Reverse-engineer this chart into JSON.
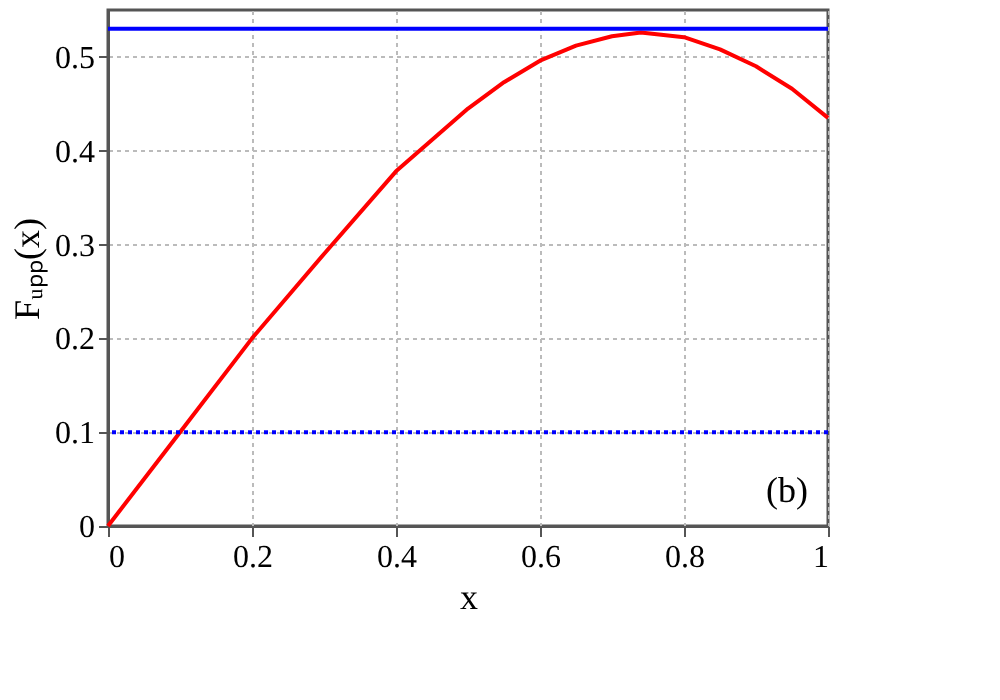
{
  "chart_data": {
    "type": "line",
    "xlabel": "x",
    "ylabel": "Fᵤₚₚ(x)",
    "x": [
      0,
      0.1,
      0.2,
      0.3,
      0.4,
      0.5,
      0.55,
      0.6,
      0.65,
      0.7,
      0.74,
      0.8,
      0.85,
      0.9,
      0.95,
      1.0
    ],
    "series": [
      {
        "color": "#ff0000",
        "values": [
          0,
          0.1,
          0.2,
          0.29,
          0.378,
          0.445,
          0.473,
          0.496,
          0.512,
          0.522,
          0.526,
          0.521,
          0.508,
          0.49,
          0.466,
          0.435
        ]
      }
    ],
    "ref_lines": [
      {
        "axis": "y",
        "value": 0.53,
        "color": "#0000ff",
        "line_style": "solid"
      },
      {
        "axis": "y",
        "value": 0.1,
        "color": "#0000ff",
        "line_style": "dotted"
      }
    ],
    "annotations": [
      "(b)"
    ],
    "xlim": [
      0,
      1
    ],
    "xticks": [
      0,
      0.2,
      0.4,
      0.6,
      0.8,
      1
    ],
    "ylim": [
      0,
      0.55
    ],
    "yticks": [
      0,
      0.1,
      0.2,
      0.3,
      0.4,
      0.5
    ],
    "grid": true,
    "marker": "none",
    "line_style": "solid"
  }
}
